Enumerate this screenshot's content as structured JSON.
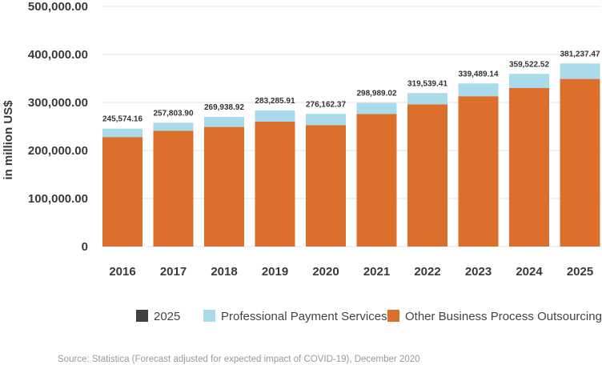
{
  "chart_data": {
    "type": "bar",
    "stacked": true,
    "categories": [
      "2016",
      "2017",
      "2018",
      "2019",
      "2020",
      "2021",
      "2022",
      "2023",
      "2024",
      "2025"
    ],
    "series": [
      {
        "name": "2025",
        "color": "#404040",
        "values": [
          0,
          0,
          0,
          0,
          0,
          0,
          0,
          0,
          0,
          0
        ]
      },
      {
        "name": "Other Business Process Outsourcing",
        "color": "#dc6f2b",
        "values": [
          228000,
          241000,
          249000,
          260000,
          253000,
          276000,
          296000,
          313000,
          330000,
          349000
        ]
      },
      {
        "name": "Professional Payment Services",
        "color": "#a9dbeb",
        "values": [
          17574.16,
          16803.9,
          20938.92,
          23285.91,
          23162.37,
          22989.02,
          23539.41,
          26489.14,
          29522.52,
          32237.47
        ]
      }
    ],
    "totals": [
      245574.16,
      257803.9,
      269938.92,
      283285.91,
      276162.37,
      298989.02,
      319539.41,
      339489.14,
      359522.52,
      381237.47
    ],
    "total_labels": [
      "245,574.16",
      "257,803.90",
      "269,938.92",
      "283,285.91",
      "276,162.37",
      "298,989.02",
      "319,539.41",
      "339,489.14",
      "359,522.52",
      "381,237.47"
    ],
    "ylabel": "in million US$",
    "ylim": [
      0,
      500000
    ],
    "yticks": [
      0,
      100000,
      200000,
      300000,
      400000,
      500000
    ],
    "ytick_labels": [
      "0",
      "100,000.00",
      "200,000.00",
      "300,000.00",
      "400,000.00",
      "500,000.00"
    ],
    "grid": true,
    "legend_position": "bottom",
    "legend_order": [
      "2025",
      "Professional Payment Services",
      "Other Business Process Outsourcing"
    ]
  },
  "source": "Source: Statistica (Forecast adjusted for expected impact of COVID-19), December 2020"
}
